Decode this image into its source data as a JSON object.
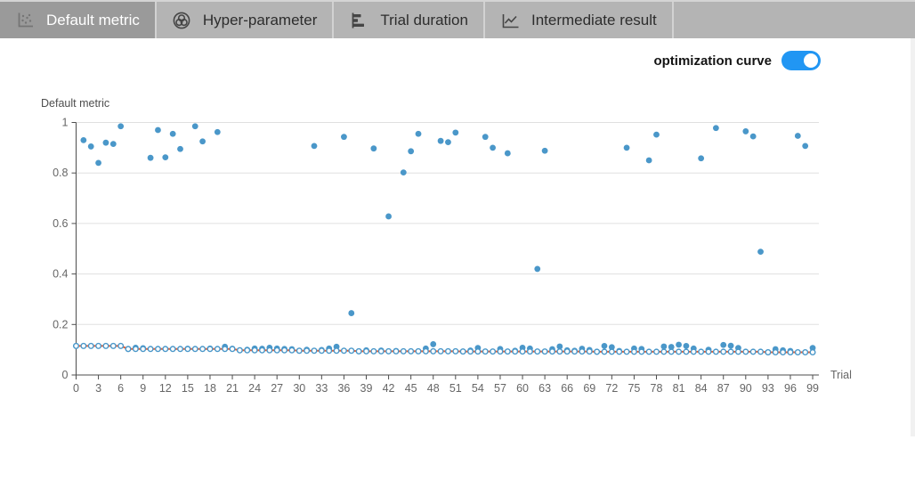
{
  "tabs": [
    {
      "label": "Default metric",
      "icon": "scatter-chart-icon",
      "active": true
    },
    {
      "label": "Hyper-parameter",
      "icon": "hyper-parameter-rings-icon",
      "active": false
    },
    {
      "label": "Trial duration",
      "icon": "horizontal-bar-chart-icon",
      "active": false
    },
    {
      "label": "Intermediate result",
      "icon": "line-chart-icon",
      "active": false
    }
  ],
  "controls": {
    "optimization_curve_label": "optimization curve",
    "optimization_curve_on": true
  },
  "colors": {
    "toggle_on": "#2196f3"
  },
  "chart_data": {
    "type": "scatter",
    "title": "Default metric",
    "xlabel": "Trial",
    "ylabel": "",
    "xlim": [
      0,
      99
    ],
    "ylim": [
      0,
      1
    ],
    "grid": true,
    "legend": false,
    "x_ticks": [
      0,
      3,
      6,
      9,
      12,
      15,
      18,
      21,
      24,
      27,
      30,
      33,
      36,
      39,
      42,
      45,
      48,
      51,
      54,
      57,
      60,
      63,
      66,
      69,
      72,
      75,
      78,
      81,
      84,
      87,
      90,
      93,
      96,
      99
    ],
    "y_ticks": [
      0,
      0.2,
      0.4,
      0.6,
      0.8,
      1
    ],
    "colors": {
      "scatter": "#4a97c9",
      "curve": "#ea5a2c"
    },
    "series": [
      {
        "name": "Default metric",
        "type": "scatter",
        "x_is_trial_index": true,
        "values": [
          0.115,
          0.93,
          0.905,
          0.84,
          0.92,
          0.915,
          0.985,
          0.103,
          0.108,
          0.106,
          0.86,
          0.97,
          0.862,
          0.955,
          0.895,
          0.104,
          0.985,
          0.925,
          0.105,
          0.962,
          0.112,
          0.104,
          0.098,
          0.1,
          0.105,
          0.104,
          0.108,
          0.105,
          0.103,
          0.102,
          0.096,
          0.1,
          0.907,
          0.099,
          0.105,
          0.112,
          0.943,
          0.245,
          0.094,
          0.098,
          0.897,
          0.097,
          0.628,
          0.095,
          0.802,
          0.886,
          0.955,
          0.105,
          0.122,
          0.927,
          0.922,
          0.96,
          0.093,
          0.097,
          0.107,
          0.943,
          0.9,
          0.103,
          0.878,
          0.096,
          0.108,
          0.105,
          0.42,
          0.888,
          0.102,
          0.113,
          0.098,
          0.096,
          0.104,
          0.099,
          0.092,
          0.115,
          0.11,
          0.095,
          0.9,
          0.105,
          0.103,
          0.85,
          0.952,
          0.113,
          0.111,
          0.12,
          0.115,
          0.105,
          0.858,
          0.1,
          0.978,
          0.119,
          0.116,
          0.107,
          0.965,
          0.945,
          0.488,
          0.09,
          0.102,
          0.098,
          0.095,
          0.947,
          0.907,
          0.107
        ]
      },
      {
        "name": "optimization curve",
        "type": "line",
        "derived_from": "running_min_of_default_metric"
      }
    ]
  }
}
